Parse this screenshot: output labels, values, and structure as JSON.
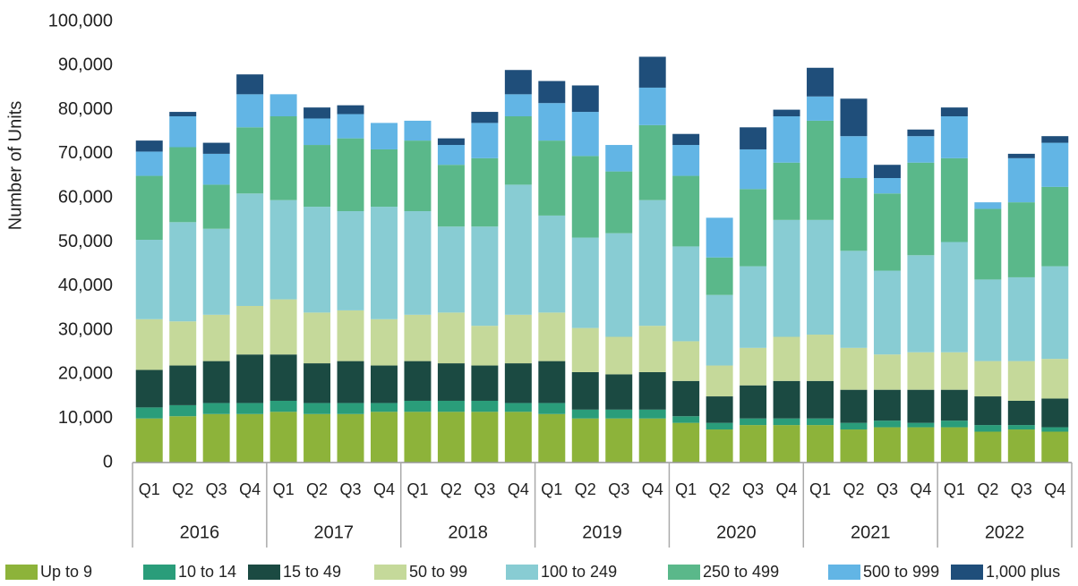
{
  "chart_data": {
    "type": "stacked_bar",
    "y_axis_label": "Number of Units",
    "categories": [
      "Q1",
      "Q2",
      "Q3",
      "Q4",
      "Q1",
      "Q2",
      "Q3",
      "Q4",
      "Q1",
      "Q2",
      "Q3",
      "Q4",
      "Q1",
      "Q2",
      "Q3",
      "Q4",
      "Q1",
      "Q2",
      "Q3",
      "Q4",
      "Q1",
      "Q2",
      "Q3",
      "Q4",
      "Q1",
      "Q2",
      "Q3",
      "Q4"
    ],
    "groups": [
      "2016",
      "2017",
      "2018",
      "2019",
      "2020",
      "2021",
      "2022"
    ],
    "ylim": [
      0,
      100000
    ],
    "yticks": [
      0,
      {
        "value": 10000,
        "label": "10,000"
      },
      {
        "value": 20000,
        "label": "20,000"
      },
      {
        "value": 30000,
        "label": "30,000"
      },
      {
        "value": 40000,
        "label": "40,000"
      },
      {
        "value": 50000,
        "label": "50,000"
      },
      {
        "value": 60000,
        "label": "60,000"
      },
      {
        "value": 70000,
        "label": "70,000"
      },
      {
        "value": 80000,
        "label": "80,000"
      },
      {
        "value": 90000,
        "label": "90,000"
      },
      {
        "value": 100000,
        "label": "100,000"
      }
    ],
    "grid": false,
    "legend": "bottom",
    "series": [
      {
        "name": "Up to 9",
        "color": "#8db33a",
        "values": [
          10000,
          10500,
          11000,
          11000,
          11500,
          11000,
          11000,
          11500,
          11500,
          11500,
          11500,
          11500,
          11000,
          10000,
          10000,
          10000,
          9000,
          7500,
          8500,
          8500,
          8500,
          7500,
          8000,
          8000,
          8000,
          7000,
          7500,
          7000
        ]
      },
      {
        "name": "10 to 14",
        "color": "#2a9d7a",
        "values": [
          2500,
          2500,
          2500,
          2500,
          2500,
          2500,
          2500,
          2000,
          2500,
          2500,
          2500,
          2000,
          2500,
          2000,
          2000,
          2000,
          1500,
          1500,
          1500,
          1500,
          1500,
          1500,
          1500,
          1000,
          1500,
          1500,
          1000,
          1000
        ]
      },
      {
        "name": "15 to 49",
        "color": "#1b4a42",
        "values": [
          8500,
          9000,
          9500,
          11000,
          10500,
          9000,
          9500,
          8500,
          9000,
          8500,
          8000,
          9000,
          9500,
          8500,
          8000,
          8500,
          8000,
          6000,
          7500,
          8500,
          8500,
          7500,
          7000,
          7500,
          7000,
          6500,
          5500,
          6500
        ]
      },
      {
        "name": "50 to 99",
        "color": "#c5d99a",
        "values": [
          11500,
          10000,
          10500,
          11000,
          12500,
          11500,
          11500,
          10500,
          10500,
          11500,
          9000,
          11000,
          11000,
          10000,
          8500,
          10500,
          9000,
          7000,
          8500,
          10000,
          10500,
          9500,
          8000,
          8500,
          8500,
          8000,
          9000,
          9000
        ]
      },
      {
        "name": "100 to 249",
        "color": "#88ccd3",
        "values": [
          18000,
          22500,
          19500,
          25500,
          22500,
          24000,
          22500,
          25500,
          23500,
          19500,
          22500,
          29500,
          22000,
          20500,
          23500,
          28500,
          21500,
          16000,
          18500,
          26500,
          26000,
          22000,
          19000,
          22000,
          25000,
          18500,
          19000,
          21000
        ]
      },
      {
        "name": "250 to 499",
        "color": "#5ab88a",
        "values": [
          14500,
          17000,
          10000,
          15000,
          19000,
          14000,
          16500,
          13000,
          16000,
          14000,
          15500,
          15500,
          17000,
          18500,
          14000,
          17000,
          16000,
          8500,
          17500,
          13000,
          22500,
          16500,
          17500,
          21000,
          19000,
          16000,
          17000,
          18000
        ]
      },
      {
        "name": "500 to 999",
        "color": "#62b5e5",
        "values": [
          5500,
          7000,
          7000,
          7500,
          5000,
          6000,
          5500,
          6000,
          4500,
          4500,
          8000,
          5000,
          8500,
          10000,
          6000,
          8500,
          7000,
          9000,
          9000,
          10500,
          5500,
          9500,
          3500,
          6000,
          9500,
          1500,
          10000,
          10000
        ]
      },
      {
        "name": "1,000 plus",
        "color": "#1f4e7a",
        "values": [
          2500,
          1000,
          2500,
          4500,
          0,
          2500,
          2000,
          0,
          0,
          1500,
          2500,
          5500,
          5000,
          6000,
          0,
          7000,
          2500,
          0,
          5000,
          1500,
          6500,
          8500,
          3000,
          1500,
          2000,
          0,
          1000,
          1500
        ]
      }
    ]
  }
}
